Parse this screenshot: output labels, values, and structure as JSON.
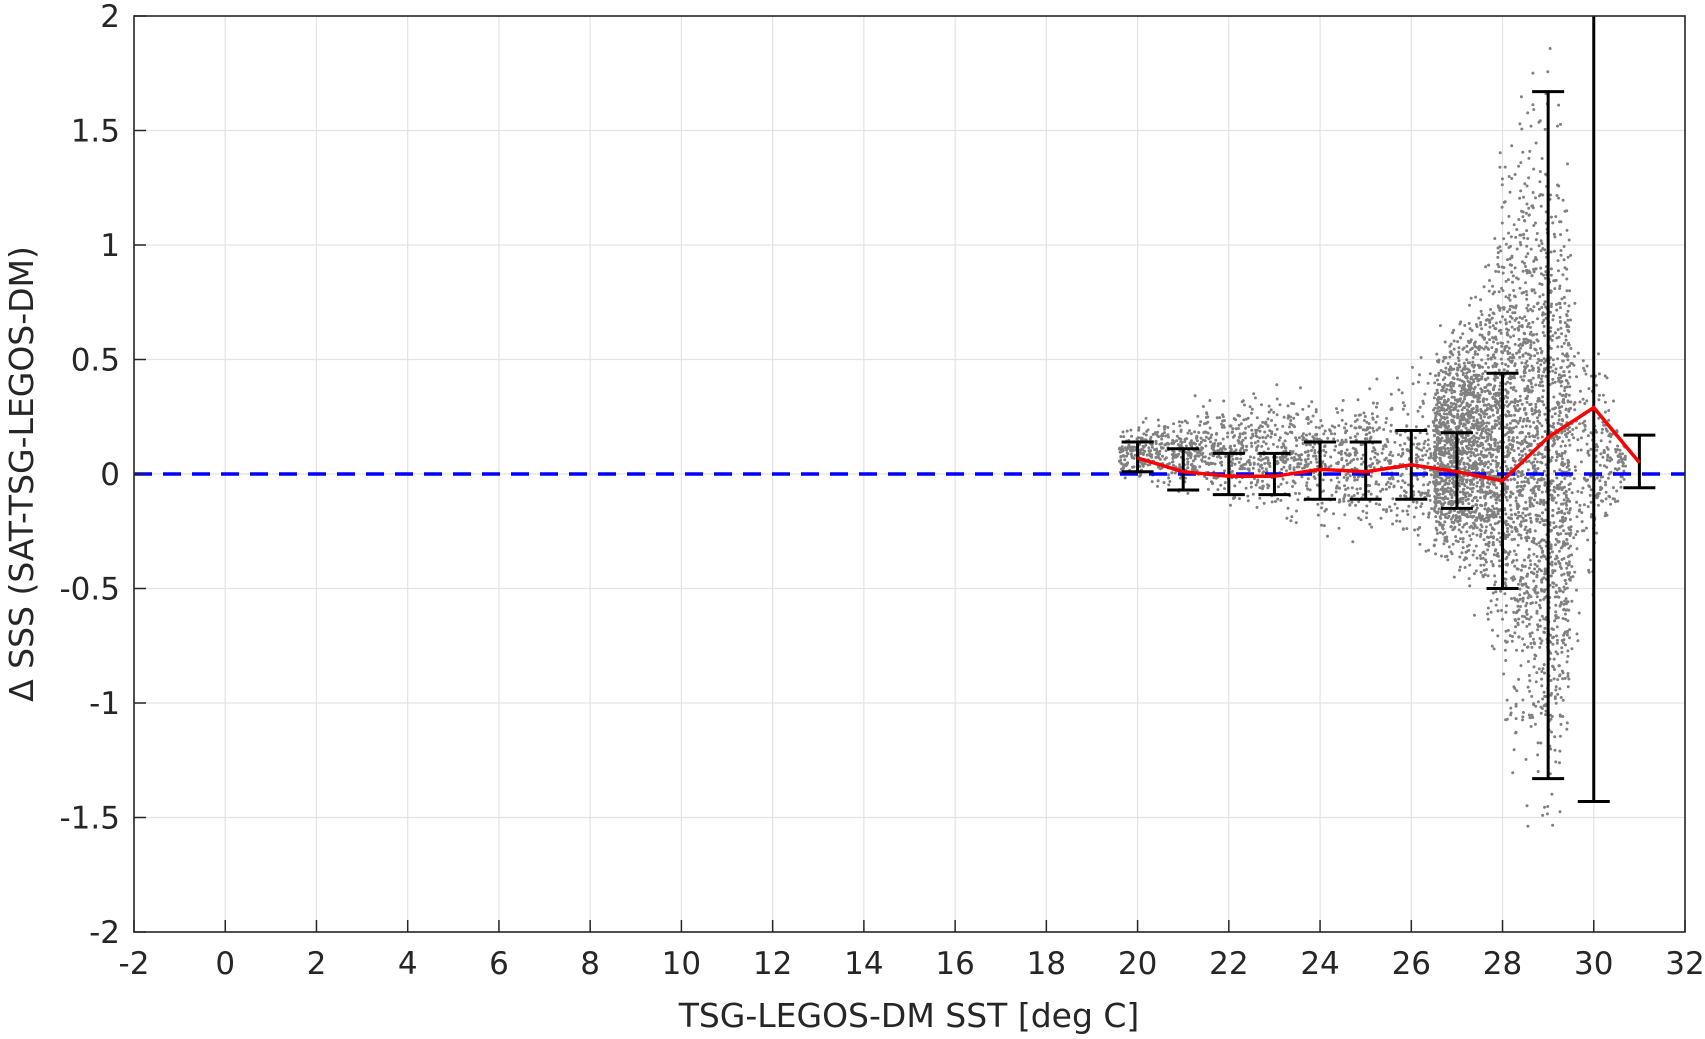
{
  "chart_data": {
    "type": "scatter",
    "xlabel": "TSG-LEGOS-DM SST [deg C]",
    "ylabel": "Δ SSS (SAT-TSG-LEGOS-DM)",
    "xlim": [
      -2,
      32
    ],
    "ylim": [
      -2,
      2
    ],
    "x_ticks": [
      -2,
      0,
      2,
      4,
      6,
      8,
      10,
      12,
      14,
      16,
      18,
      20,
      22,
      24,
      26,
      28,
      30,
      32
    ],
    "x_tick_labels": [
      "-2",
      "0",
      "2",
      "4",
      "6",
      "8",
      "10",
      "12",
      "14",
      "16",
      "18",
      "20",
      "22",
      "24",
      "26",
      "28",
      "30",
      "32"
    ],
    "y_ticks": [
      -2,
      -1.5,
      -1,
      -0.5,
      0,
      0.5,
      1,
      1.5,
      2
    ],
    "y_tick_labels": [
      "-2",
      "-1.5",
      "-1",
      "-0.5",
      "0",
      "0.5",
      "1",
      "1.5",
      "2"
    ],
    "grid": true,
    "scatter_color": "#808080",
    "scatter_envelope": [
      {
        "x": 19.6,
        "low": -0.05,
        "high": 0.22
      },
      {
        "x": 20.5,
        "low": -0.12,
        "high": 0.3
      },
      {
        "x": 22.0,
        "low": -0.2,
        "high": 0.4
      },
      {
        "x": 24.0,
        "low": -0.3,
        "high": 0.45
      },
      {
        "x": 26.0,
        "low": -0.45,
        "high": 0.55
      },
      {
        "x": 27.0,
        "low": -0.55,
        "high": 0.8
      },
      {
        "x": 27.5,
        "low": -0.7,
        "high": 1.0
      },
      {
        "x": 28.0,
        "low": -1.2,
        "high": 1.5
      },
      {
        "x": 28.5,
        "low": -1.7,
        "high": 2.0
      },
      {
        "x": 29.0,
        "low": -2.0,
        "high": 2.0
      },
      {
        "x": 29.4,
        "low": -1.6,
        "high": 1.7
      },
      {
        "x": 29.8,
        "low": -0.8,
        "high": 0.9
      },
      {
        "x": 30.3,
        "low": -0.3,
        "high": 0.5
      },
      {
        "x": 30.7,
        "low": -0.08,
        "high": 0.15
      }
    ],
    "series": [
      {
        "line_color": "#ff0000",
        "x": [
          20,
          21,
          22,
          23,
          24,
          25,
          26,
          27,
          28,
          29,
          30,
          31
        ],
        "y": [
          0.07,
          0.01,
          -0.01,
          -0.01,
          0.02,
          0.01,
          0.04,
          0.01,
          -0.03,
          0.16,
          0.29,
          0.05
        ],
        "err_low": [
          0.01,
          -0.07,
          -0.09,
          -0.09,
          -0.11,
          -0.11,
          -0.11,
          -0.15,
          -0.5,
          -1.33,
          -1.43,
          -0.06
        ],
        "err_high": [
          0.14,
          0.11,
          0.09,
          0.09,
          0.14,
          0.14,
          0.19,
          0.18,
          0.44,
          1.67,
          2.0,
          0.17
        ],
        "err_color": "#000000"
      }
    ],
    "reference_line": {
      "y": 0,
      "color": "#0000ff",
      "style": "dashed"
    }
  }
}
